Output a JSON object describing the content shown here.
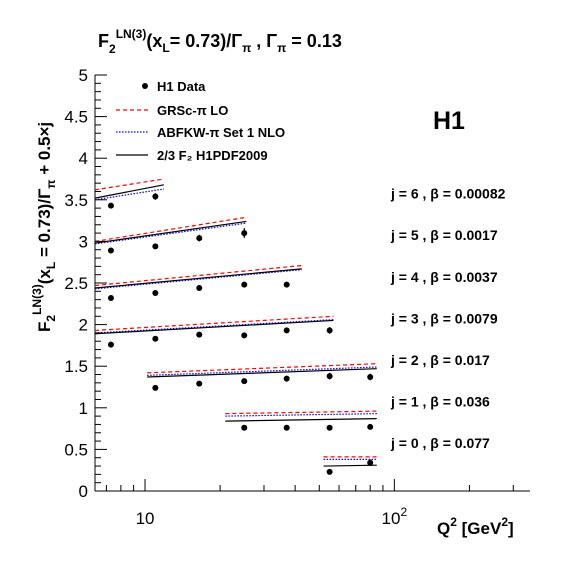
{
  "chart_data": {
    "type": "scatter",
    "title": {
      "base": "F",
      "sub": "2",
      "sup": "LN(3)",
      "rest": "(x",
      "sub2": "L",
      "rest2": "= 0.73)/Γ",
      "sub3": "π",
      "rest3": " , Γ",
      "sub4": "π",
      "rest4": " = 0.13"
    },
    "ylabel_parts": [
      "F",
      "2",
      "LN(3)",
      "(x",
      "L",
      " = 0.73)/Γ",
      "π",
      " + 0.5×j"
    ],
    "xlabel_parts": [
      "Q",
      "2",
      " [GeV",
      "2",
      "]"
    ],
    "experiment_label": "H1",
    "x_scale": "log",
    "xlim": [
      6.3,
      350
    ],
    "ylim": [
      0,
      5
    ],
    "y_ticks": [
      "0",
      "0.5",
      "1",
      "1.5",
      "2",
      "2.5",
      "3",
      "3.5",
      "4",
      "4.5",
      "5"
    ],
    "x_ticks": [
      {
        "value": 10,
        "base": "10",
        "exp": ""
      },
      {
        "value": 100,
        "base": "10",
        "exp": "2"
      }
    ],
    "legend": [
      {
        "label": "H1 Data",
        "style": "marker",
        "color": "#000000"
      },
      {
        "label": "GRSc-π LO",
        "style": "dashed",
        "color": "#ff0000"
      },
      {
        "label": "ABFKW-π Set 1 NLO",
        "style": "dotted",
        "color": "#0000ff"
      },
      {
        "label": "2/3 F₂  H1PDF2009",
        "style": "solid",
        "color": "#000000"
      }
    ],
    "series": [
      {
        "name": "j = 6 , β = 0.00082",
        "data": [
          [
            7.3,
            3.43,
            0.02
          ],
          [
            11,
            3.54,
            0.04
          ]
        ],
        "x_range": [
          6.3,
          11.9
        ],
        "grsc": [
          3.62,
          3.75
        ],
        "abfkw": [
          3.5,
          3.63
        ],
        "h1pdf": [
          3.52,
          3.68
        ]
      },
      {
        "name": "j = 5 , β = 0.0017",
        "data": [
          [
            7.3,
            2.89,
            0.02
          ],
          [
            11,
            2.94,
            0.02
          ],
          [
            16.5,
            3.04,
            0.04
          ],
          [
            25,
            3.1,
            0.06
          ]
        ],
        "x_range": [
          6.3,
          25.5
        ],
        "grsc": [
          3.0,
          3.29
        ],
        "abfkw": [
          2.97,
          3.22
        ],
        "h1pdf": [
          2.98,
          3.24
        ]
      },
      {
        "name": "j = 4 , β = 0.0037",
        "data": [
          [
            7.3,
            2.32,
            0.02
          ],
          [
            11,
            2.38,
            0.02
          ],
          [
            16.5,
            2.44,
            0.02
          ],
          [
            25,
            2.48,
            0.03
          ],
          [
            37,
            2.48,
            0.03
          ]
        ],
        "x_range": [
          6.3,
          42.5
        ],
        "grsc": [
          2.47,
          2.71
        ],
        "abfkw": [
          2.43,
          2.66
        ],
        "h1pdf": [
          2.44,
          2.67
        ]
      },
      {
        "name": "j = 3 , β = 0.0079",
        "data": [
          [
            7.3,
            1.76,
            0.02
          ],
          [
            11,
            1.83,
            0.02
          ],
          [
            16.5,
            1.88,
            0.02
          ],
          [
            25,
            1.87,
            0.02
          ],
          [
            37,
            1.93,
            0.03
          ],
          [
            55,
            1.93,
            0.04
          ]
        ],
        "x_range": [
          6.3,
          57
        ],
        "grsc": [
          1.93,
          2.1
        ],
        "abfkw": [
          1.9,
          2.06
        ],
        "h1pdf": [
          1.89,
          2.05
        ]
      },
      {
        "name": "j = 2 , β = 0.017",
        "data": [
          [
            11,
            1.24,
            0.02
          ],
          [
            16.5,
            1.29,
            0.02
          ],
          [
            25,
            1.32,
            0.02
          ],
          [
            37,
            1.35,
            0.02
          ],
          [
            55,
            1.38,
            0.04
          ],
          [
            80,
            1.37,
            0.04
          ]
        ],
        "x_range": [
          10.2,
          85
        ],
        "grsc": [
          1.42,
          1.53
        ],
        "abfkw": [
          1.39,
          1.49
        ],
        "h1pdf": [
          1.37,
          1.47
        ]
      },
      {
        "name": "j = 1 , β = 0.036",
        "data": [
          [
            25,
            0.76,
            0.02
          ],
          [
            37,
            0.76,
            0.02
          ],
          [
            55,
            0.76,
            0.02
          ],
          [
            80,
            0.77,
            0.03
          ]
        ],
        "x_range": [
          21,
          85
        ],
        "grsc": [
          0.93,
          0.96
        ],
        "abfkw": [
          0.9,
          0.93
        ],
        "h1pdf": [
          0.84,
          0.87
        ]
      },
      {
        "name": "j = 0 , β = 0.077",
        "data": [
          [
            55,
            0.23,
            0.02
          ],
          [
            80,
            0.34,
            0.04
          ]
        ],
        "x_range": [
          52,
          85
        ],
        "grsc": [
          0.41,
          0.41
        ],
        "abfkw": [
          0.38,
          0.38
        ],
        "h1pdf": [
          0.3,
          0.31
        ]
      }
    ]
  }
}
